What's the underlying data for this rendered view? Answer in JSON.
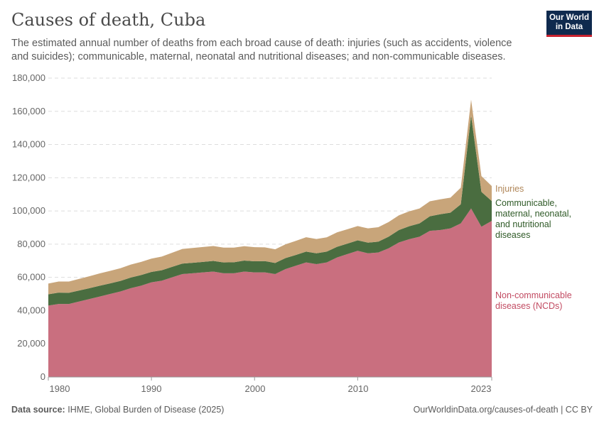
{
  "title": "Causes of death, Cuba",
  "subtitle": "The estimated annual number of deaths from each broad cause of death: injuries (such as accidents, violence and suicides); communicable, maternal, neonatal and nutritional diseases; and non-communicable diseases.",
  "logo": {
    "line1": "Our World",
    "line2": "in Data"
  },
  "footer": {
    "source_label": "Data source:",
    "source": "IHME, Global Burden of Disease (2025)",
    "link": "OurWorldinData.org/causes-of-death | CC BY"
  },
  "chart_data": {
    "type": "area",
    "stacked": true,
    "x": [
      1980,
      1981,
      1982,
      1983,
      1984,
      1985,
      1986,
      1987,
      1988,
      1989,
      1990,
      1991,
      1992,
      1993,
      1994,
      1995,
      1996,
      1997,
      1998,
      1999,
      2000,
      2001,
      2002,
      2003,
      2004,
      2005,
      2006,
      2007,
      2008,
      2009,
      2010,
      2011,
      2012,
      2013,
      2014,
      2015,
      2016,
      2017,
      2018,
      2019,
      2020,
      2021,
      2022,
      2023
    ],
    "xticks": [
      "1980",
      "1990",
      "2000",
      "2010",
      "2023"
    ],
    "yticks": [
      "0",
      "20,000",
      "40,000",
      "60,000",
      "80,000",
      "100,000",
      "120,000",
      "140,000",
      "160,000",
      "180,000"
    ],
    "ylim": [
      0,
      180000
    ],
    "grid": true,
    "legend": "right",
    "series": [
      {
        "name": "Non-communicable diseases (NCDs)",
        "color": "#c96f7f",
        "values": [
          43000,
          44000,
          44000,
          45500,
          47000,
          48500,
          50000,
          51500,
          53500,
          55000,
          57000,
          58000,
          60000,
          62000,
          62500,
          63000,
          63500,
          62500,
          62500,
          63500,
          63000,
          63000,
          62000,
          65000,
          67000,
          69000,
          68000,
          69000,
          72000,
          74000,
          76000,
          74500,
          75000,
          77500,
          81000,
          83000,
          84500,
          88000,
          88500,
          89500,
          92500,
          101500,
          90500,
          94000
        ]
      },
      {
        "name": "Communicable, maternal, neonatal, and nutritional diseases",
        "color": "#4a6d40",
        "values": [
          6800,
          6800,
          6700,
          6600,
          6500,
          6500,
          6400,
          6400,
          6400,
          6400,
          6300,
          6300,
          6300,
          6300,
          6300,
          6300,
          6400,
          6500,
          6600,
          6600,
          6700,
          6800,
          6700,
          6600,
          6500,
          6500,
          6500,
          6500,
          6400,
          6300,
          6300,
          6400,
          6500,
          7000,
          7500,
          7800,
          8000,
          8800,
          9500,
          9500,
          11500,
          56000,
          21000,
          12000
        ]
      },
      {
        "name": "Injuries",
        "color": "#c8a57a",
        "values": [
          6500,
          6700,
          6800,
          7000,
          7200,
          7400,
          7500,
          7600,
          7800,
          7900,
          8000,
          8200,
          8500,
          8800,
          8900,
          9000,
          9000,
          8900,
          8800,
          8700,
          8500,
          8300,
          8200,
          8300,
          8500,
          8700,
          8600,
          8600,
          8700,
          8700,
          8600,
          8600,
          8700,
          8800,
          8900,
          9000,
          9000,
          9000,
          9000,
          9000,
          10000,
          9500,
          9500,
          9000
        ]
      }
    ],
    "labels": [
      "Injuries",
      "Communicable, maternal, neonatal, and nutritional diseases",
      "Non-communicable diseases (NCDs)"
    ]
  }
}
